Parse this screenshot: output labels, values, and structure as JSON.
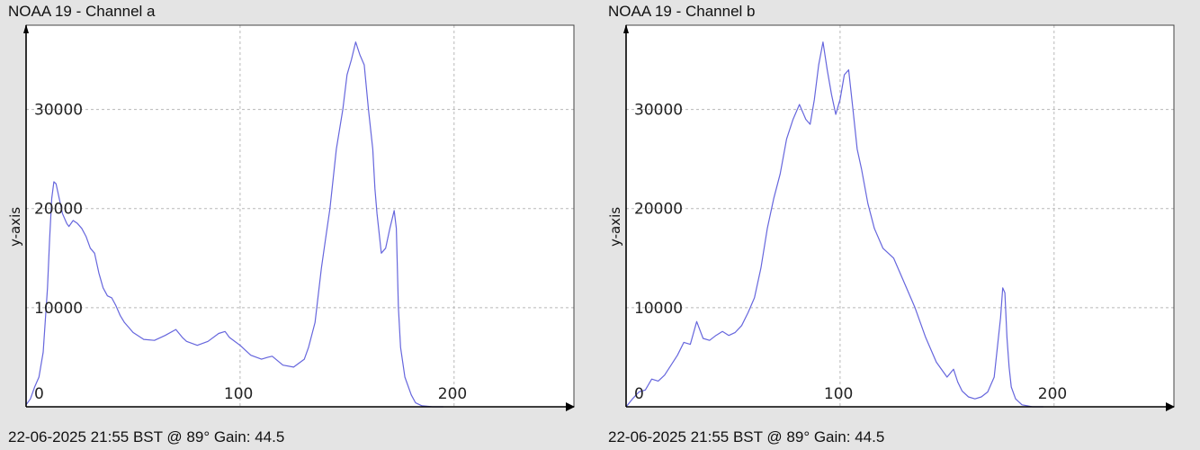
{
  "chart_data": [
    {
      "type": "line",
      "title": "NOAA 19 - Channel a",
      "footer": "22-06-2025 21:55 BST @ 89° Gain: 44.5",
      "ylabel": "y-axis",
      "xlabel": "",
      "xlim": [
        0,
        256
      ],
      "ylim": [
        0,
        38500
      ],
      "x_ticks": [
        0,
        100,
        200
      ],
      "y_ticks": [
        10000,
        20000,
        30000
      ],
      "grid": true,
      "line_color": "#6666dd",
      "series": [
        {
          "x": [
            0,
            2,
            4,
            6,
            8,
            10,
            11,
            12,
            13,
            14,
            15,
            16,
            17,
            18,
            19,
            20,
            22,
            24,
            26,
            28,
            30,
            32,
            34,
            36,
            38,
            40,
            42,
            44,
            46,
            48,
            50,
            55,
            60,
            65,
            70,
            73,
            75,
            80,
            85,
            90,
            93,
            95,
            100,
            105,
            110,
            113,
            115,
            120,
            125,
            130,
            132,
            135,
            138,
            140,
            142,
            145,
            148,
            150,
            152,
            154,
            156,
            158,
            160,
            162,
            163,
            164,
            166,
            168,
            170,
            172,
            173,
            174,
            175,
            177,
            180,
            182,
            185,
            190,
            195
          ],
          "y": [
            200,
            800,
            2000,
            3000,
            5500,
            12000,
            17000,
            21000,
            22700,
            22500,
            21500,
            20500,
            19500,
            19000,
            18500,
            18200,
            18800,
            18500,
            18000,
            17200,
            16000,
            15500,
            13500,
            12000,
            11200,
            11000,
            10200,
            9200,
            8500,
            8000,
            7500,
            6800,
            6700,
            7200,
            7800,
            7000,
            6600,
            6200,
            6600,
            7400,
            7600,
            7000,
            6200,
            5200,
            4800,
            5000,
            5100,
            4200,
            4000,
            4800,
            6000,
            8500,
            14000,
            17000,
            20000,
            26000,
            30000,
            33500,
            35000,
            36800,
            35500,
            34500,
            30000,
            26000,
            22000,
            19500,
            15500,
            16000,
            18000,
            19800,
            18000,
            10000,
            6000,
            3000,
            1200,
            400,
            100,
            0,
            0
          ]
        }
      ]
    },
    {
      "type": "line",
      "title": "NOAA 19 - Channel b",
      "footer": "22-06-2025 21:55 BST @ 89° Gain: 44.5",
      "ylabel": "y-axis",
      "xlabel": "",
      "xlim": [
        0,
        256
      ],
      "ylim": [
        0,
        38500
      ],
      "x_ticks": [
        0,
        100,
        200
      ],
      "y_ticks": [
        10000,
        20000,
        30000
      ],
      "grid": true,
      "line_color": "#6666dd",
      "series": [
        {
          "x": [
            0,
            3,
            6,
            9,
            12,
            15,
            18,
            21,
            24,
            27,
            30,
            33,
            36,
            39,
            42,
            45,
            48,
            51,
            54,
            57,
            60,
            63,
            66,
            69,
            72,
            75,
            78,
            81,
            84,
            86,
            88,
            90,
            92,
            94,
            96,
            98,
            100,
            102,
            104,
            106,
            108,
            110,
            113,
            116,
            120,
            125,
            130,
            135,
            140,
            145,
            150,
            153,
            155,
            157,
            160,
            163,
            166,
            169,
            172,
            175,
            176,
            177,
            178,
            179,
            180,
            182,
            185,
            190,
            195
          ],
          "y": [
            0,
            800,
            1500,
            1700,
            2800,
            2600,
            3200,
            4200,
            5200,
            6500,
            6300,
            8600,
            6900,
            6700,
            7200,
            7600,
            7200,
            7500,
            8200,
            9500,
            11000,
            14000,
            18000,
            21000,
            23500,
            27000,
            29000,
            30500,
            29000,
            28500,
            31000,
            34500,
            36800,
            34000,
            31500,
            29500,
            31000,
            33500,
            34000,
            30000,
            26000,
            24000,
            20500,
            18000,
            16000,
            15000,
            12500,
            10000,
            7000,
            4500,
            3000,
            3800,
            2500,
            1600,
            1000,
            800,
            1000,
            1500,
            3000,
            9000,
            12000,
            11500,
            7000,
            4000,
            2000,
            800,
            200,
            0,
            0
          ]
        }
      ]
    }
  ]
}
